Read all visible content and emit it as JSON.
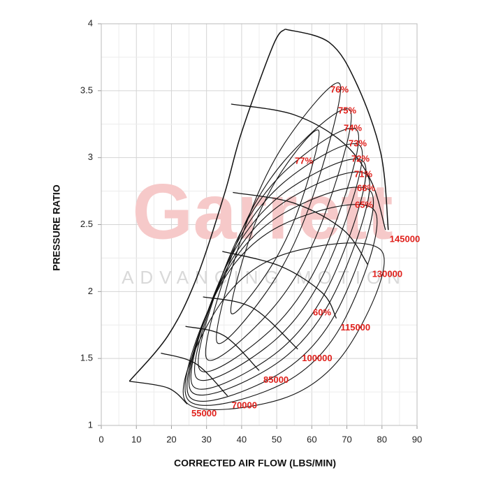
{
  "chart_data": {
    "type": "compressor-map",
    "x_label": "CORRECTED AIR FLOW (LBS/MIN)",
    "y_label": "PRESSURE RATIO",
    "xlim": [
      0,
      90
    ],
    "xticks": [
      0,
      10,
      20,
      30,
      40,
      50,
      60,
      70,
      80,
      90
    ],
    "ylim": [
      1,
      4
    ],
    "yticks": [
      1,
      1.5,
      2,
      2.5,
      3,
      3.5,
      4
    ],
    "grid": true,
    "line_color": "#111111",
    "label_color": "#e0201b",
    "watermark": {
      "brand": "Garrett",
      "tagline": "ADVANCING MOTION"
    },
    "surge_line": {
      "x": [
        8,
        19,
        27,
        35,
        40,
        49,
        52.4
      ],
      "y": [
        1.33,
        1.67,
        2.09,
        2.72,
        3.19,
        3.84,
        3.96
      ]
    },
    "max_speed_line": {
      "x": [
        52.4,
        65,
        72.8,
        79.7,
        81.8
      ],
      "y": [
        3.96,
        3.86,
        3.55,
        3.03,
        2.46
      ]
    },
    "speed_lines": [
      {
        "name": "55000",
        "x": [
          8,
          19,
          24.5
        ],
        "y": [
          1.33,
          1.28,
          1.16
        ]
      },
      {
        "name": "70000",
        "x": [
          17,
          27,
          36
        ],
        "y": [
          1.54,
          1.46,
          1.22
        ]
      },
      {
        "name": "85000",
        "x": [
          24,
          35,
          45
        ],
        "y": [
          1.74,
          1.67,
          1.41
        ]
      },
      {
        "name": "100000",
        "x": [
          29,
          43,
          56
        ],
        "y": [
          1.96,
          1.88,
          1.57
        ]
      },
      {
        "name": "115000",
        "x": [
          34.5,
          51,
          63,
          67
        ],
        "y": [
          2.3,
          2.19,
          1.99,
          1.8
        ]
      },
      {
        "name": "130000",
        "x": [
          37.5,
          55,
          69,
          76
        ],
        "y": [
          2.74,
          2.66,
          2.46,
          2.2
        ]
      },
      {
        "name": "145000",
        "x": [
          37,
          55,
          69,
          77,
          81
        ],
        "y": [
          3.4,
          3.32,
          3.11,
          2.82,
          2.46
        ]
      }
    ],
    "efficiency_islands": [
      {
        "name": "77%",
        "x": [
          37,
          43,
          51.5,
          62,
          56,
          47.5
        ],
        "y": [
          1.84,
          2.45,
          2.9,
          3.2,
          2.6,
          2.15
        ]
      },
      {
        "name": "76%",
        "x": [
          33,
          40.7,
          52.3,
          68,
          60.3,
          48.7
        ],
        "y": [
          1.62,
          2.46,
          3.11,
          3.55,
          2.71,
          2.06
        ]
      },
      {
        "name": "75%",
        "x": [
          30,
          38.7,
          52.3,
          71,
          62.3,
          48.7
        ],
        "y": [
          1.5,
          2.37,
          2.98,
          3.35,
          2.48,
          1.87
        ]
      },
      {
        "name": "74%",
        "x": [
          28,
          37,
          52,
          73,
          64,
          49
        ],
        "y": [
          1.42,
          2.29,
          2.89,
          3.2,
          2.33,
          1.73
        ]
      },
      {
        "name": "73%",
        "x": [
          27,
          36.2,
          51.8,
          74,
          64.8,
          49.2
        ],
        "y": [
          1.36,
          2.23,
          2.81,
          3.08,
          2.21,
          1.63
        ]
      },
      {
        "name": "72%",
        "x": [
          26,
          35.3,
          51.7,
          75,
          65.7,
          49.3
        ],
        "y": [
          1.3,
          2.17,
          2.73,
          2.96,
          2.09,
          1.53
        ]
      },
      {
        "name": "71%",
        "x": [
          25.5,
          34.8,
          51.7,
          76,
          66.7,
          49.8
        ],
        "y": [
          1.26,
          2.12,
          2.66,
          2.86,
          2.0,
          1.46
        ]
      },
      {
        "name": "68%",
        "x": [
          25,
          34.3,
          51.7,
          77,
          67.7,
          50.3
        ],
        "y": [
          1.22,
          2.08,
          2.58,
          2.74,
          1.88,
          1.38
        ]
      },
      {
        "name": "65%",
        "x": [
          24.5,
          33.8,
          51.7,
          78,
          68.7,
          50.8
        ],
        "y": [
          1.2,
          2.04,
          2.5,
          2.6,
          1.76,
          1.3
        ]
      },
      {
        "name": "60%",
        "x": [
          24,
          33.7,
          52.3,
          80,
          70.3,
          51.7
        ],
        "y": [
          1.18,
          1.9,
          2.28,
          2.3,
          1.58,
          1.2
        ]
      }
    ]
  }
}
